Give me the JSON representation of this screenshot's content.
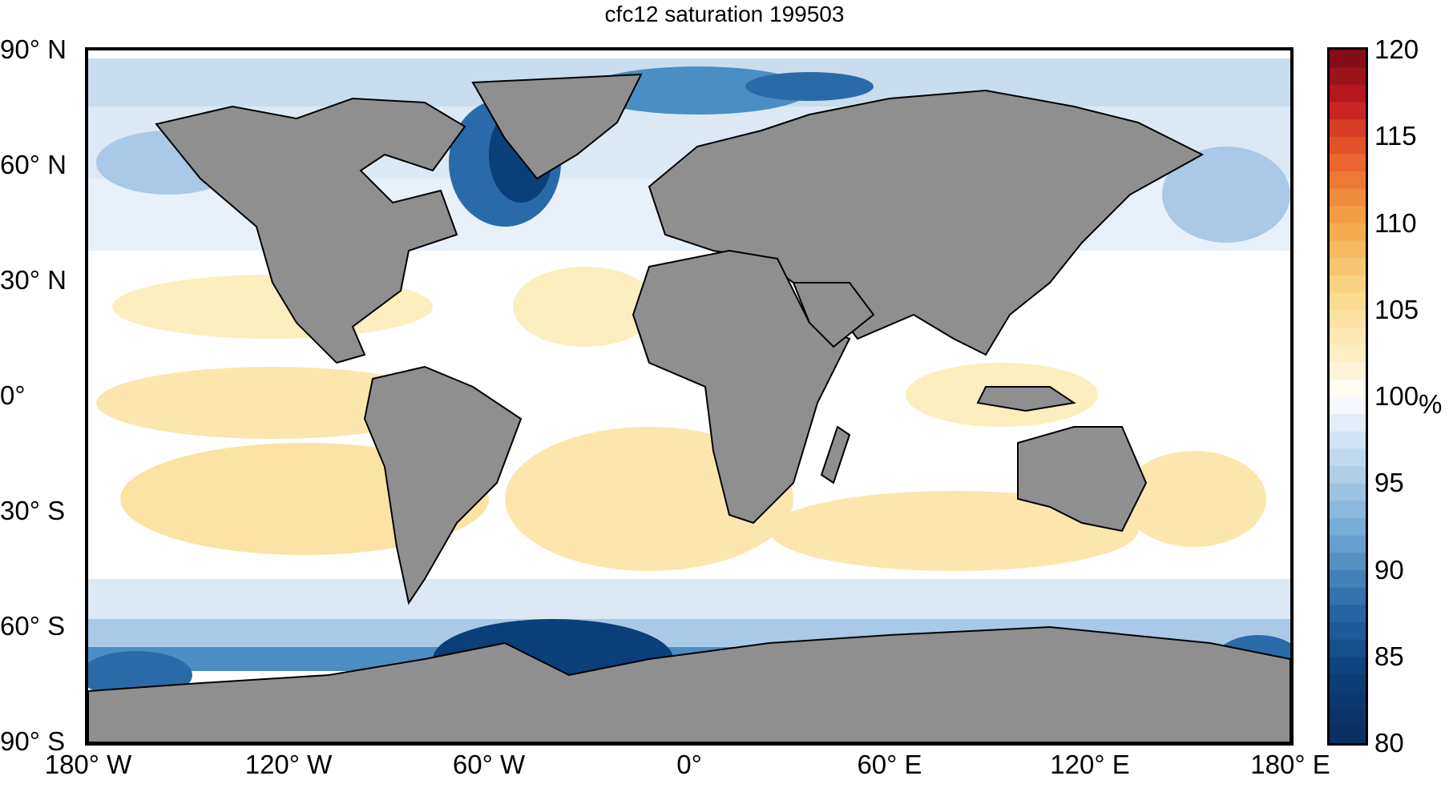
{
  "title": "cfc12 saturation 199503",
  "axes": {
    "lat_labels": [
      {
        "text": "90° N",
        "lat": 90
      },
      {
        "text": "60° N",
        "lat": 60
      },
      {
        "text": "30° N",
        "lat": 30
      },
      {
        "text": "0°",
        "lat": 0
      },
      {
        "text": "30° S",
        "lat": -30
      },
      {
        "text": "60° S",
        "lat": -60
      },
      {
        "text": "90° S",
        "lat": -90
      }
    ],
    "lon_labels": [
      {
        "text": "180° W",
        "lon": -180
      },
      {
        "text": "120° W",
        "lon": -120
      },
      {
        "text": "60° W",
        "lon": -60
      },
      {
        "text": "0°",
        "lon": 0
      },
      {
        "text": "60° E",
        "lon": 60
      },
      {
        "text": "120° E",
        "lon": 120
      },
      {
        "text": "180° E",
        "lon": 180
      }
    ]
  },
  "colorbar": {
    "unit": "%",
    "min": 80,
    "max": 120,
    "ticks": [
      "120",
      "115",
      "110",
      "105",
      "100",
      "95",
      "90",
      "85",
      "80"
    ],
    "colors": {
      "dark_blue": "#0b3f7a",
      "mid_blue": "#4a8ec4",
      "light_blue": "#c9ddef",
      "white": "#ffffff",
      "light_yellow": "#fbe9b0",
      "orange": "#f29a3a",
      "red": "#c21a20",
      "dark_red": "#7a0a14",
      "land": "#8f8f8f"
    }
  }
}
